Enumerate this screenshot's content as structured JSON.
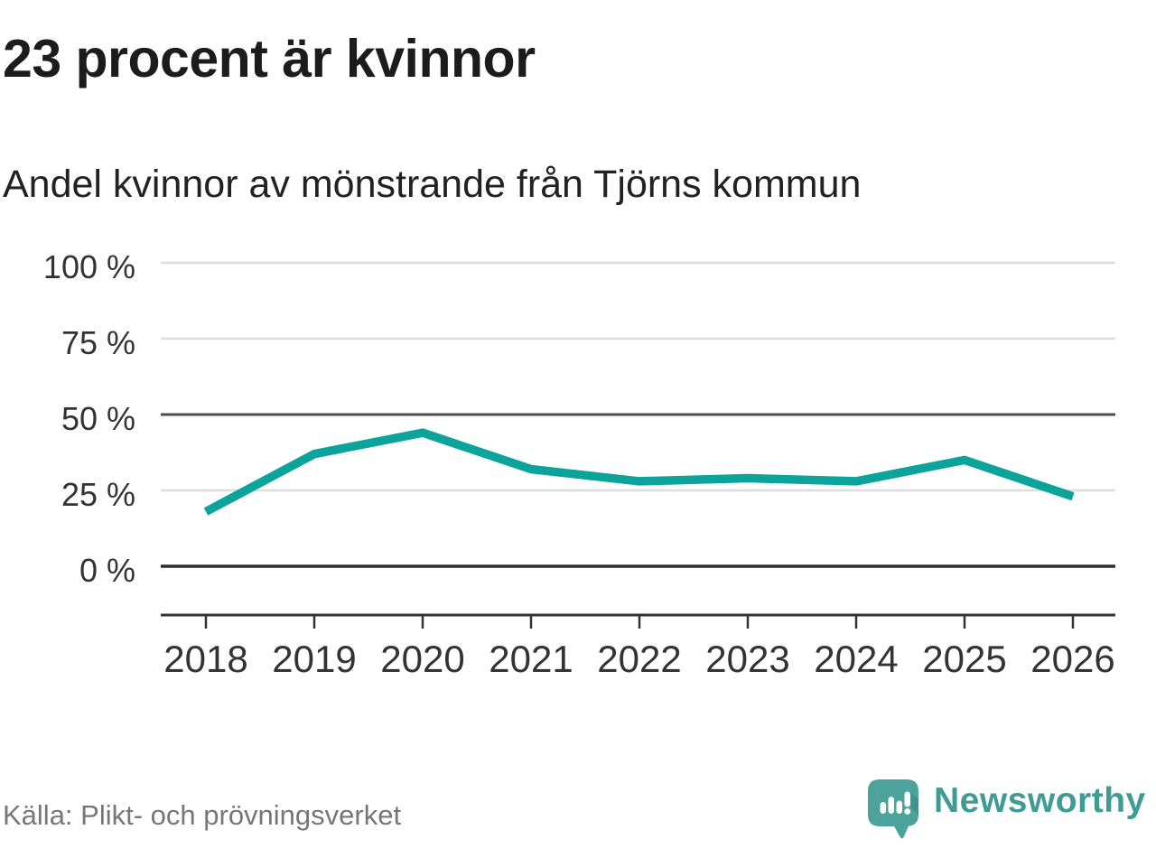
{
  "chart_data": {
    "type": "line",
    "title": "23 procent är kvinnor",
    "subtitle": "Andel kvinnor av mönstrande från Tjörns kommun",
    "categories": [
      "2018",
      "2019",
      "2020",
      "2021",
      "2022",
      "2023",
      "2024",
      "2025",
      "2026"
    ],
    "values": [
      18,
      37,
      44,
      32,
      28,
      29,
      28,
      35,
      23
    ],
    "unit": "%",
    "xlabel": "",
    "ylabel": "",
    "ylim": [
      0,
      100
    ],
    "yticks": [
      {
        "value": 100,
        "label": "100 %"
      },
      {
        "value": 75,
        "label": "75 %"
      },
      {
        "value": 50,
        "label": "50 %"
      },
      {
        "value": 25,
        "label": "25 %"
      },
      {
        "value": 0,
        "label": "0 %"
      }
    ],
    "grid": true,
    "legend": false,
    "line_color": "#0ba39a"
  },
  "footer": {
    "source": "Källa: Plikt- och prövningsverket",
    "brand": "Newsworthy"
  },
  "colors": {
    "accent": "#0ba39a",
    "brand_teal": "#3f9b95",
    "logo_bubble": "#4ba39c",
    "title_text": "#1c1c1c",
    "source_text": "#76767b",
    "grid_light": "#dddddd",
    "grid_mid": "#4c4c4c",
    "grid_zero": "#2d2d2d",
    "axis": "#333333"
  }
}
